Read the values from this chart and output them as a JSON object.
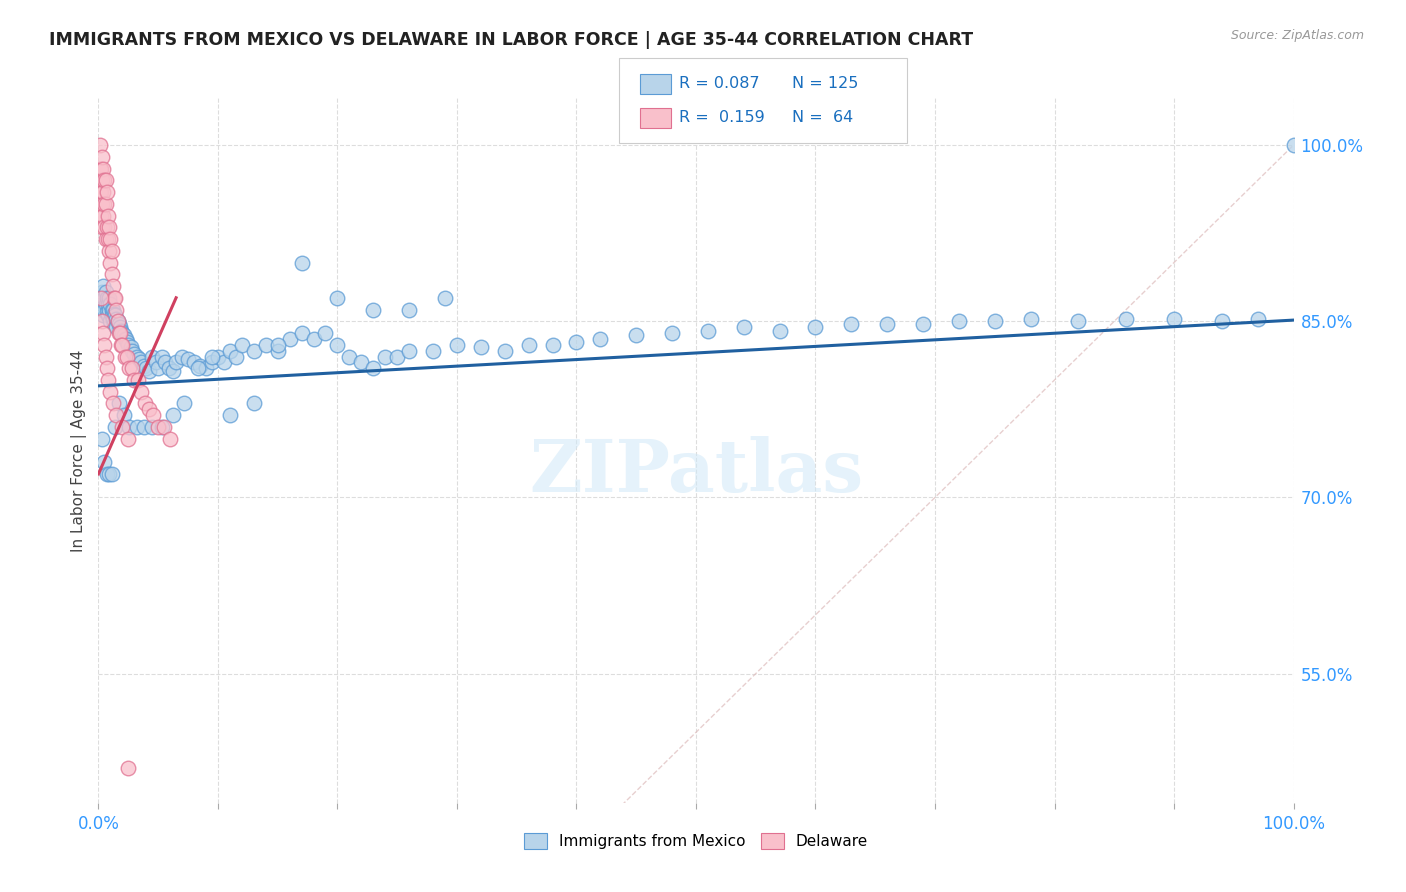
{
  "title": "IMMIGRANTS FROM MEXICO VS DELAWARE IN LABOR FORCE | AGE 35-44 CORRELATION CHART",
  "source": "Source: ZipAtlas.com",
  "ylabel": "In Labor Force | Age 35-44",
  "xlim": [
    0,
    1.0
  ],
  "ylim": [
    0.44,
    1.04
  ],
  "x_ticks": [
    0.0,
    0.1,
    0.2,
    0.3,
    0.4,
    0.5,
    0.6,
    0.7,
    0.8,
    0.9,
    1.0
  ],
  "x_tick_labels_show": {
    "0.0": "0.0%",
    "1.0": "100.0%"
  },
  "y_tick_values_right": [
    0.55,
    0.7,
    0.85,
    1.0
  ],
  "y_tick_labels_right": [
    "55.0%",
    "70.0%",
    "85.0%",
    "100.0%"
  ],
  "R_blue": 0.087,
  "N_blue": 125,
  "R_pink": 0.159,
  "N_pink": 64,
  "blue_scatter_color": "#b8d4ea",
  "blue_edge_color": "#5b9bd5",
  "pink_scatter_color": "#f9c0cb",
  "pink_edge_color": "#e07090",
  "trend_blue_color": "#2060a0",
  "trend_pink_color": "#d04060",
  "diagonal_color": "#cccccc",
  "blue_trend_x0": 0.0,
  "blue_trend_y0": 0.795,
  "blue_trend_x1": 1.0,
  "blue_trend_y1": 0.851,
  "pink_trend_x0": 0.0,
  "pink_trend_y0": 0.72,
  "pink_trend_x1": 0.065,
  "pink_trend_y1": 0.87,
  "blue_x": [
    0.002,
    0.003,
    0.003,
    0.004,
    0.004,
    0.005,
    0.005,
    0.006,
    0.006,
    0.007,
    0.007,
    0.008,
    0.008,
    0.009,
    0.009,
    0.01,
    0.01,
    0.011,
    0.011,
    0.012,
    0.012,
    0.013,
    0.013,
    0.014,
    0.015,
    0.015,
    0.016,
    0.017,
    0.018,
    0.019,
    0.02,
    0.021,
    0.022,
    0.023,
    0.024,
    0.025,
    0.027,
    0.028,
    0.03,
    0.032,
    0.034,
    0.036,
    0.038,
    0.04,
    0.042,
    0.045,
    0.048,
    0.05,
    0.053,
    0.056,
    0.059,
    0.062,
    0.065,
    0.07,
    0.075,
    0.08,
    0.085,
    0.09,
    0.095,
    0.1,
    0.105,
    0.11,
    0.115,
    0.12,
    0.13,
    0.14,
    0.15,
    0.16,
    0.17,
    0.18,
    0.19,
    0.2,
    0.21,
    0.22,
    0.23,
    0.24,
    0.25,
    0.26,
    0.28,
    0.3,
    0.32,
    0.34,
    0.36,
    0.38,
    0.4,
    0.42,
    0.45,
    0.48,
    0.51,
    0.54,
    0.57,
    0.6,
    0.63,
    0.66,
    0.69,
    0.72,
    0.75,
    0.78,
    0.82,
    0.86,
    0.9,
    0.94,
    0.97,
    1.0,
    0.003,
    0.005,
    0.007,
    0.009,
    0.011,
    0.014,
    0.017,
    0.021,
    0.026,
    0.032,
    0.038,
    0.045,
    0.053,
    0.062,
    0.072,
    0.083,
    0.095,
    0.11,
    0.13,
    0.15,
    0.17,
    0.2,
    0.23,
    0.26,
    0.29
  ],
  "blue_y": [
    0.87,
    0.875,
    0.86,
    0.88,
    0.855,
    0.87,
    0.86,
    0.865,
    0.875,
    0.87,
    0.858,
    0.865,
    0.855,
    0.87,
    0.86,
    0.865,
    0.85,
    0.86,
    0.855,
    0.86,
    0.852,
    0.856,
    0.848,
    0.855,
    0.852,
    0.845,
    0.85,
    0.848,
    0.845,
    0.842,
    0.84,
    0.838,
    0.835,
    0.835,
    0.832,
    0.83,
    0.828,
    0.825,
    0.822,
    0.82,
    0.818,
    0.815,
    0.812,
    0.81,
    0.808,
    0.82,
    0.815,
    0.81,
    0.82,
    0.815,
    0.81,
    0.808,
    0.815,
    0.82,
    0.818,
    0.815,
    0.812,
    0.81,
    0.815,
    0.82,
    0.815,
    0.825,
    0.82,
    0.83,
    0.825,
    0.83,
    0.825,
    0.835,
    0.84,
    0.835,
    0.84,
    0.83,
    0.82,
    0.815,
    0.81,
    0.82,
    0.82,
    0.825,
    0.825,
    0.83,
    0.828,
    0.825,
    0.83,
    0.83,
    0.832,
    0.835,
    0.838,
    0.84,
    0.842,
    0.845,
    0.842,
    0.845,
    0.848,
    0.848,
    0.848,
    0.85,
    0.85,
    0.852,
    0.85,
    0.852,
    0.852,
    0.85,
    0.852,
    1.0,
    0.75,
    0.73,
    0.72,
    0.72,
    0.72,
    0.76,
    0.78,
    0.77,
    0.76,
    0.76,
    0.76,
    0.76,
    0.76,
    0.77,
    0.78,
    0.81,
    0.82,
    0.77,
    0.78,
    0.83,
    0.9,
    0.87,
    0.86,
    0.86,
    0.87
  ],
  "pink_x": [
    0.001,
    0.001,
    0.001,
    0.002,
    0.002,
    0.002,
    0.003,
    0.003,
    0.003,
    0.003,
    0.004,
    0.004,
    0.004,
    0.005,
    0.005,
    0.005,
    0.006,
    0.006,
    0.006,
    0.007,
    0.007,
    0.008,
    0.008,
    0.009,
    0.009,
    0.01,
    0.01,
    0.011,
    0.011,
    0.012,
    0.013,
    0.014,
    0.015,
    0.016,
    0.017,
    0.018,
    0.019,
    0.02,
    0.022,
    0.024,
    0.026,
    0.028,
    0.03,
    0.033,
    0.036,
    0.039,
    0.042,
    0.046,
    0.05,
    0.055,
    0.06,
    0.002,
    0.003,
    0.004,
    0.005,
    0.006,
    0.007,
    0.008,
    0.01,
    0.012,
    0.015,
    0.02,
    0.025,
    0.025
  ],
  "pink_y": [
    1.0,
    0.98,
    0.96,
    0.98,
    0.96,
    0.94,
    0.99,
    0.97,
    0.95,
    0.93,
    0.98,
    0.96,
    0.94,
    0.97,
    0.95,
    0.93,
    0.97,
    0.95,
    0.92,
    0.96,
    0.93,
    0.94,
    0.92,
    0.93,
    0.91,
    0.92,
    0.9,
    0.91,
    0.89,
    0.88,
    0.87,
    0.87,
    0.86,
    0.85,
    0.84,
    0.84,
    0.83,
    0.83,
    0.82,
    0.82,
    0.81,
    0.81,
    0.8,
    0.8,
    0.79,
    0.78,
    0.775,
    0.77,
    0.76,
    0.76,
    0.75,
    0.87,
    0.85,
    0.84,
    0.83,
    0.82,
    0.81,
    0.8,
    0.79,
    0.78,
    0.77,
    0.76,
    0.75,
    0.47
  ]
}
